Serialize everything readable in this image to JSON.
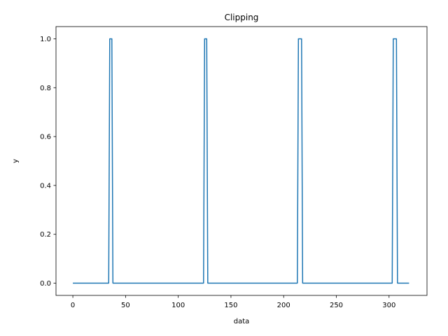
{
  "chart_data": {
    "type": "line",
    "title": "Clipping",
    "xlabel": "data",
    "ylabel": "y",
    "xlim": [
      -16,
      336
    ],
    "ylim": [
      -0.05,
      1.05
    ],
    "xticks": [
      0,
      50,
      100,
      150,
      200,
      250,
      300
    ],
    "yticks": [
      0.0,
      0.2,
      0.4,
      0.6,
      0.8,
      1.0
    ],
    "ytick_format": "0.0",
    "grid": false,
    "legend": "none",
    "series": [
      {
        "color": "#1f77b4",
        "x": [
          0,
          34,
          35,
          36,
          37,
          38,
          124,
          125,
          126,
          127,
          128,
          213,
          214,
          215,
          216,
          217,
          218,
          303,
          304,
          305,
          306,
          307,
          308,
          319
        ],
        "y": [
          0,
          0,
          1,
          1,
          1,
          0,
          0,
          1,
          1,
          1,
          0,
          0,
          1,
          1,
          1,
          1,
          0,
          0,
          1,
          1,
          1,
          1,
          0,
          0
        ]
      }
    ]
  }
}
